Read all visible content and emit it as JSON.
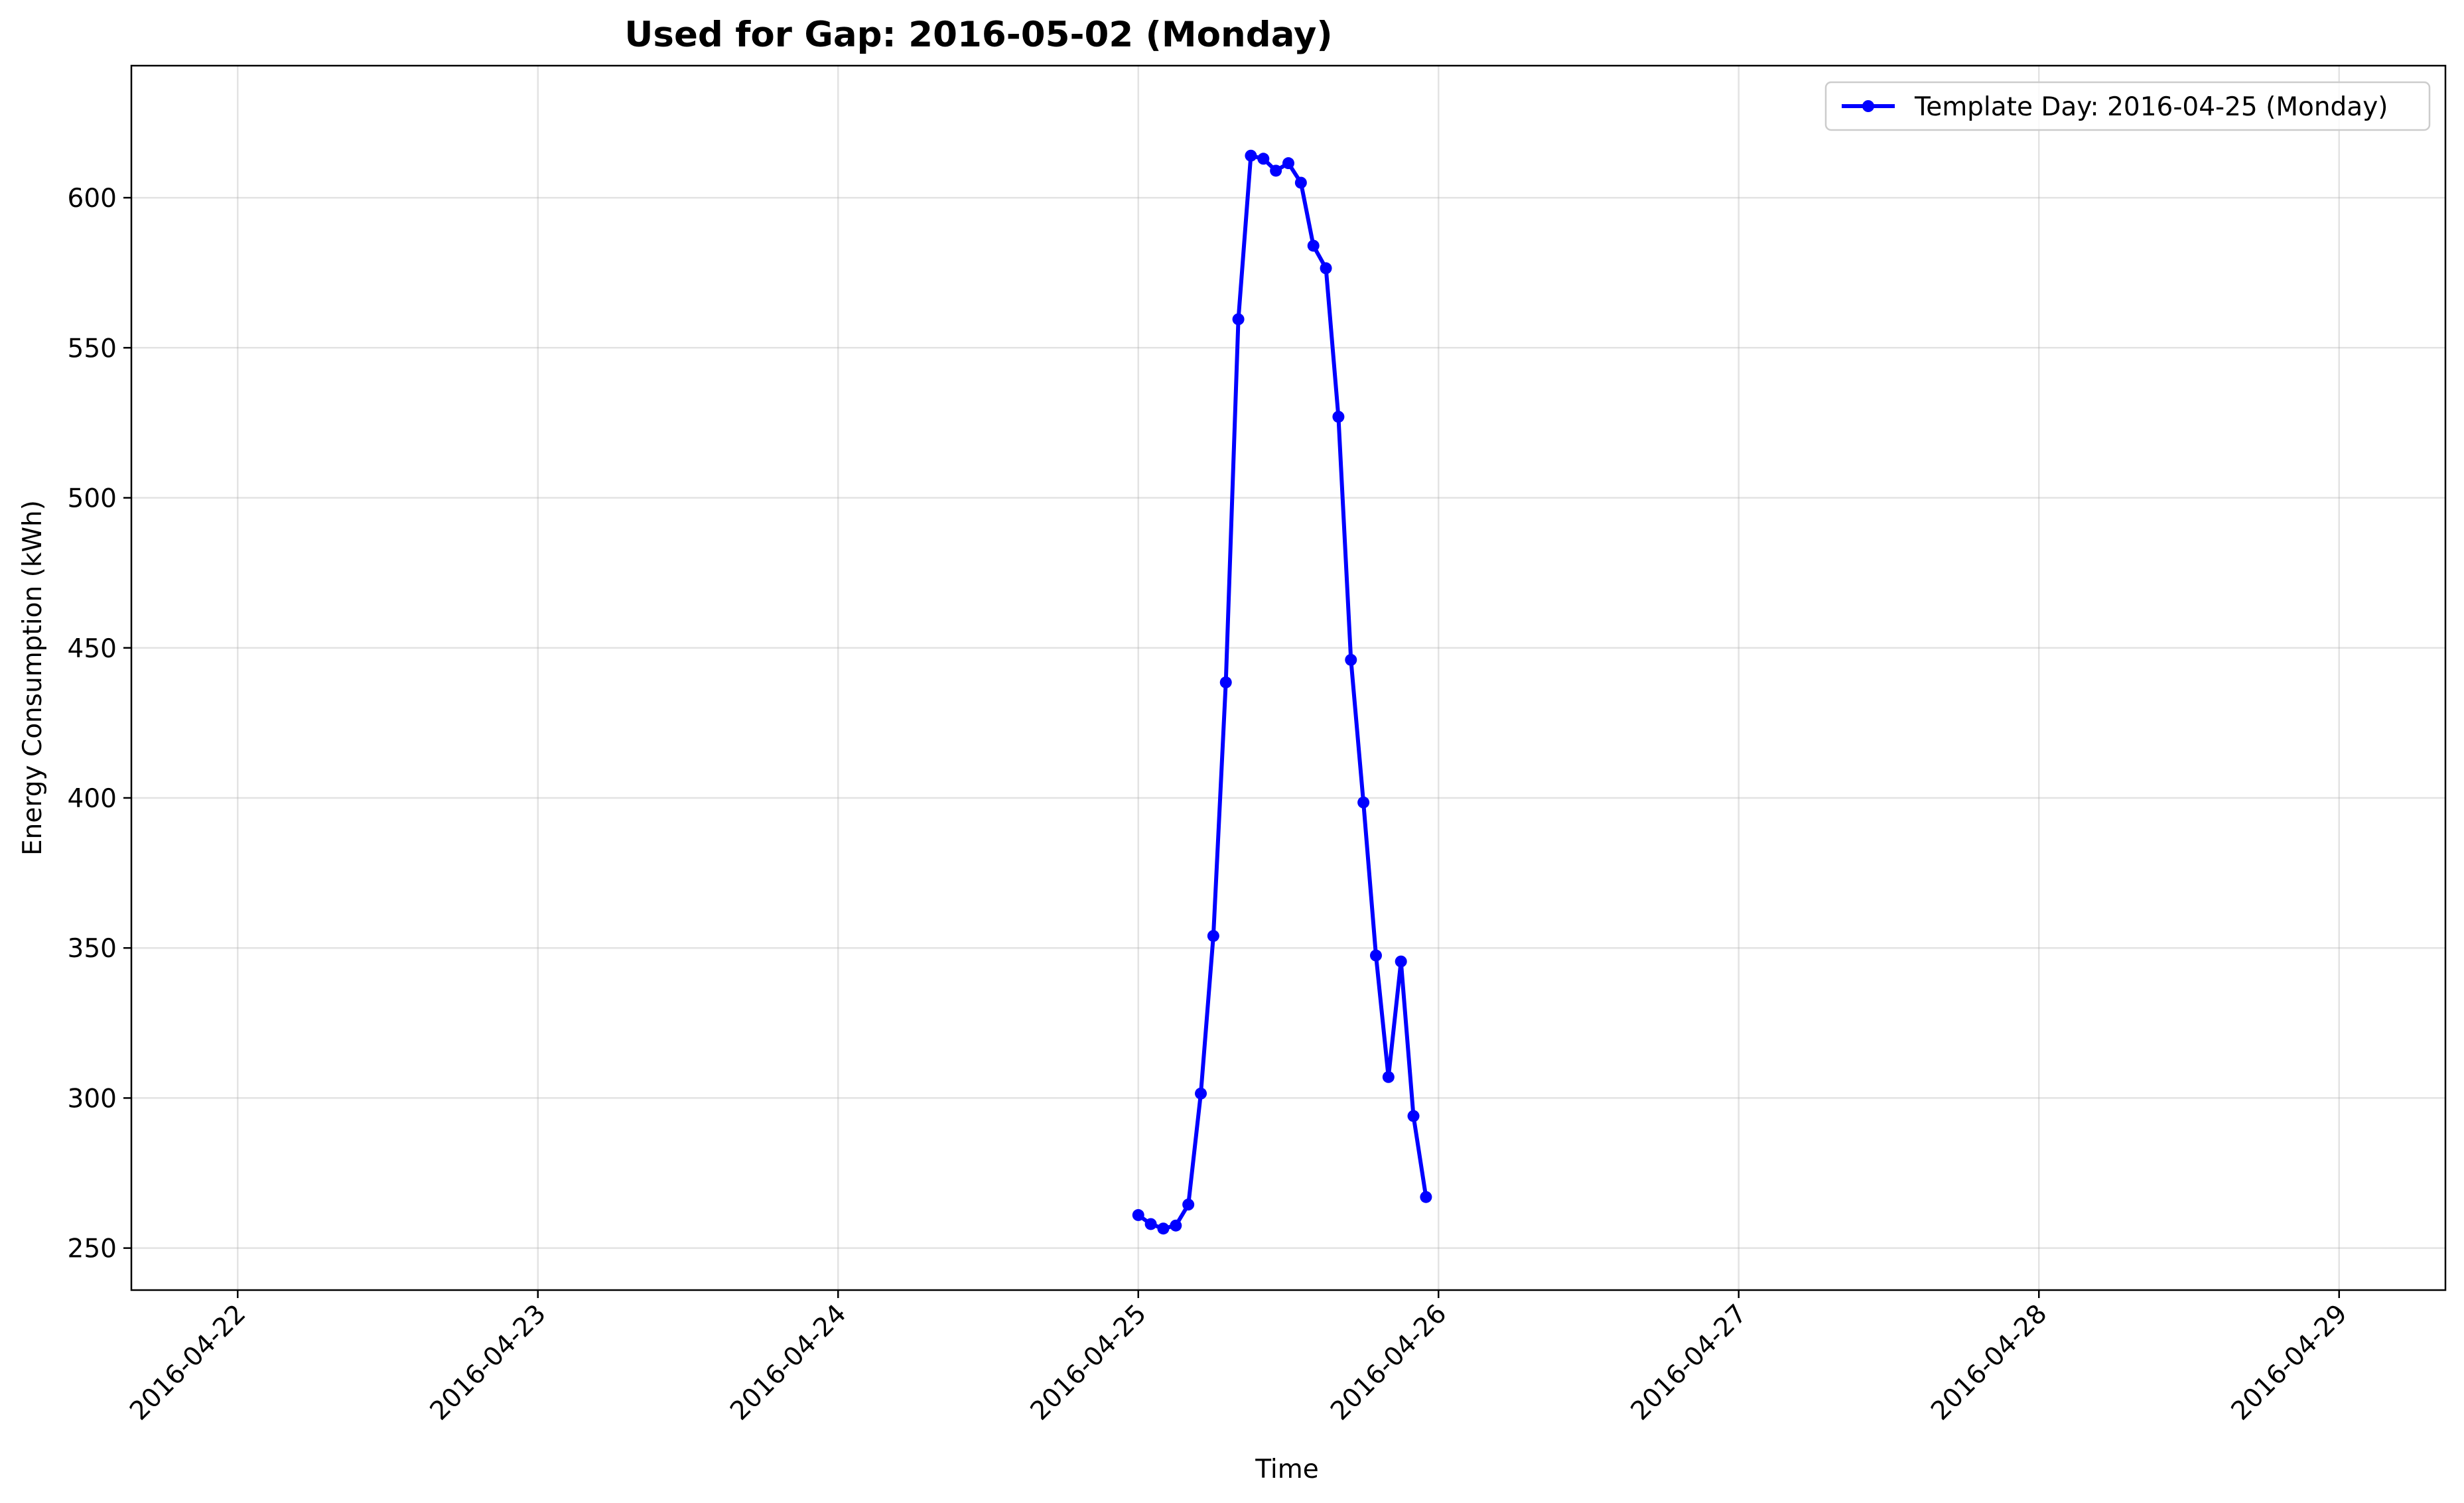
{
  "chart_data": {
    "type": "line",
    "title": "Used for Gap: 2016-05-02 (Monday)",
    "xlabel": "Time",
    "ylabel": "Energy Consumption (kWh)",
    "x_type": "datetime",
    "xlim": [
      "2016-04-21 15:30",
      "2016-04-29 08:30"
    ],
    "ylim": [
      236,
      644
    ],
    "x_ticks": [
      "2016-04-22",
      "2016-04-23",
      "2016-04-24",
      "2016-04-25",
      "2016-04-26",
      "2016-04-27",
      "2016-04-28",
      "2016-04-29"
    ],
    "y_ticks": [
      250,
      300,
      350,
      400,
      450,
      500,
      550,
      600
    ],
    "grid": true,
    "legend_position": "top-right",
    "series": [
      {
        "name": "Template Day: 2016-04-25 (Monday)",
        "color": "#0000ff",
        "marker": "circle",
        "x": [
          "2016-04-25 00:00",
          "2016-04-25 01:00",
          "2016-04-25 02:00",
          "2016-04-25 03:00",
          "2016-04-25 04:00",
          "2016-04-25 05:00",
          "2016-04-25 06:00",
          "2016-04-25 07:00",
          "2016-04-25 08:00",
          "2016-04-25 09:00",
          "2016-04-25 10:00",
          "2016-04-25 11:00",
          "2016-04-25 12:00",
          "2016-04-25 13:00",
          "2016-04-25 14:00",
          "2016-04-25 15:00",
          "2016-04-25 16:00",
          "2016-04-25 17:00",
          "2016-04-25 18:00",
          "2016-04-25 19:00",
          "2016-04-25 20:00",
          "2016-04-25 21:00",
          "2016-04-25 22:00",
          "2016-04-25 23:00"
        ],
        "y": [
          261,
          258,
          256.5,
          257.5,
          264.5,
          301.5,
          354,
          438.5,
          559.5,
          614,
          613,
          609,
          611.5,
          605,
          584,
          576.5,
          527,
          446,
          398.5,
          347.5,
          307,
          345.5,
          294,
          267
        ]
      }
    ]
  }
}
